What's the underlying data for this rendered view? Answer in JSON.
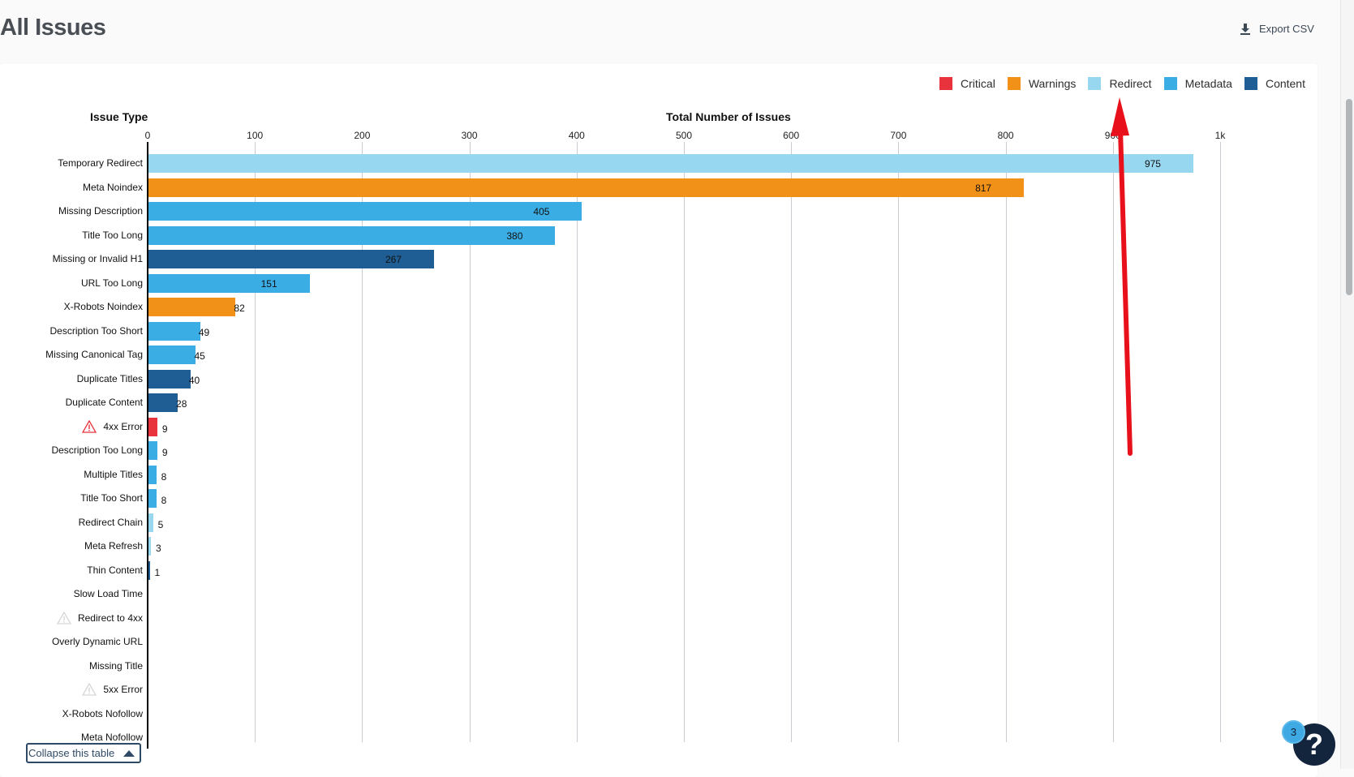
{
  "header": {
    "title": "All Issues",
    "export_label": "Export CSV",
    "export_icon": "download-icon"
  },
  "legend": [
    {
      "label": "Critical",
      "color": "#e8323c"
    },
    {
      "label": "Warnings",
      "color": "#f29118"
    },
    {
      "label": "Redirect",
      "color": "#98d7f0"
    },
    {
      "label": "Metadata",
      "color": "#3aade5"
    },
    {
      "label": "Content",
      "color": "#1f5e95"
    }
  ],
  "chart_data": {
    "type": "bar",
    "orientation": "horizontal",
    "ylabel": "Issue Type",
    "xlabel": "Total Number of Issues",
    "xlim": [
      0,
      1000
    ],
    "xticks": [
      "0",
      "100",
      "200",
      "300",
      "400",
      "500",
      "600",
      "700",
      "800",
      "900",
      "1k"
    ],
    "grid": true,
    "legend_position": "top-right",
    "rows": [
      {
        "label": "Temporary Redirect",
        "value": 975,
        "category": "Redirect",
        "warning_icon": false
      },
      {
        "label": "Meta Noindex",
        "value": 817,
        "category": "Warnings",
        "warning_icon": false
      },
      {
        "label": "Missing Description",
        "value": 405,
        "category": "Metadata",
        "warning_icon": false
      },
      {
        "label": "Title Too Long",
        "value": 380,
        "category": "Metadata",
        "warning_icon": false
      },
      {
        "label": "Missing or Invalid H1",
        "value": 267,
        "category": "Content",
        "warning_icon": false
      },
      {
        "label": "URL Too Long",
        "value": 151,
        "category": "Metadata",
        "warning_icon": false
      },
      {
        "label": "X-Robots Noindex",
        "value": 82,
        "category": "Warnings",
        "warning_icon": false
      },
      {
        "label": "Description Too Short",
        "value": 49,
        "category": "Metadata",
        "warning_icon": false
      },
      {
        "label": "Missing Canonical Tag",
        "value": 45,
        "category": "Metadata",
        "warning_icon": false
      },
      {
        "label": "Duplicate Titles",
        "value": 40,
        "category": "Content",
        "warning_icon": false
      },
      {
        "label": "Duplicate Content",
        "value": 28,
        "category": "Content",
        "warning_icon": false
      },
      {
        "label": "4xx Error",
        "value": 9,
        "category": "Critical",
        "warning_icon": "active"
      },
      {
        "label": "Description Too Long",
        "value": 9,
        "category": "Metadata",
        "warning_icon": false
      },
      {
        "label": "Multiple Titles",
        "value": 8,
        "category": "Metadata",
        "warning_icon": false
      },
      {
        "label": "Title Too Short",
        "value": 8,
        "category": "Metadata",
        "warning_icon": false
      },
      {
        "label": "Redirect Chain",
        "value": 5,
        "category": "Redirect",
        "warning_icon": false
      },
      {
        "label": "Meta Refresh",
        "value": 3,
        "category": "Redirect",
        "warning_icon": false
      },
      {
        "label": "Thin Content",
        "value": 1,
        "category": "Content",
        "warning_icon": false
      },
      {
        "label": "Slow Load Time",
        "value": null,
        "category": null,
        "warning_icon": false
      },
      {
        "label": "Redirect to 4xx",
        "value": null,
        "category": null,
        "warning_icon": "inactive"
      },
      {
        "label": "Overly Dynamic URL",
        "value": null,
        "category": null,
        "warning_icon": false
      },
      {
        "label": "Missing Title",
        "value": null,
        "category": null,
        "warning_icon": false
      },
      {
        "label": "5xx Error",
        "value": null,
        "category": null,
        "warning_icon": "inactive"
      },
      {
        "label": "X-Robots Nofollow",
        "value": null,
        "category": null,
        "warning_icon": false
      },
      {
        "label": "Meta Nofollow",
        "value": null,
        "category": null,
        "warning_icon": false
      }
    ]
  },
  "footer": {
    "collapse_label": "Collapse this table"
  },
  "help": {
    "badge_count": "3",
    "icon_glyph": "?"
  },
  "annotation": {
    "type": "red-arrow",
    "color": "#e8101a"
  }
}
